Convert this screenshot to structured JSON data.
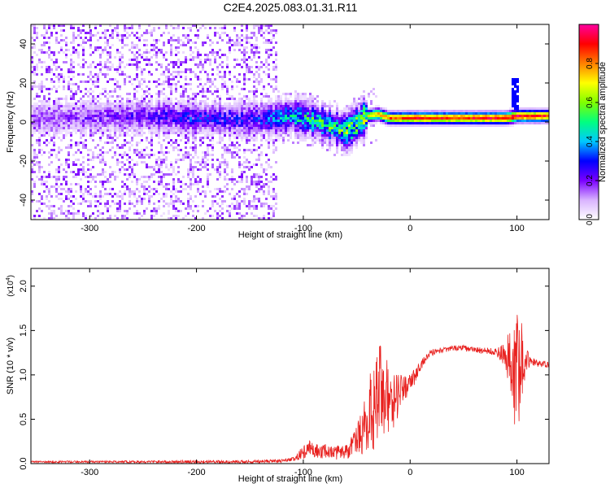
{
  "title": "C2E4.2025.083.01.31.R11",
  "chart_data": [
    {
      "type": "heatmap",
      "panel": "spectrogram",
      "xlabel": "Height of straight line (km)",
      "ylabel": "Frequency (Hz)",
      "xlim": [
        -355,
        130
      ],
      "ylim": [
        -50,
        50
      ],
      "xticks": [
        -300,
        -200,
        -100,
        0,
        100
      ],
      "yticks": [
        -40,
        -20,
        0,
        20,
        40
      ],
      "xtick_labels": [
        "-300",
        "-200",
        "-100",
        "0",
        "100"
      ],
      "ytick_labels": [
        "-40",
        "-20",
        "0",
        "20",
        "40"
      ],
      "colorbar": {
        "label": "Normalized spectral amplitude",
        "range": [
          0,
          1
        ],
        "ticks": [
          0.0,
          0.2,
          0.4,
          0.6,
          0.8
        ],
        "tick_labels": [
          "0.0",
          "0.2",
          "0.4",
          "0.6",
          "0.8"
        ],
        "colors": [
          "#ffffff",
          "#d9b3ff",
          "#7a00ff",
          "#0000ff",
          "#00c8ff",
          "#00ff80",
          "#80ff00",
          "#ffff00",
          "#ff8000",
          "#ff0000",
          "#ff00a0"
        ]
      },
      "features": {
        "noise_region_x": [
          -355,
          -125
        ],
        "noise_region_amplitude": 0.1,
        "band_center_freq": [
          [
            -355,
            2
          ],
          [
            -250,
            3
          ],
          [
            -150,
            1
          ],
          [
            -110,
            3
          ],
          [
            -90,
            1
          ],
          [
            -75,
            -2
          ],
          [
            -60,
            -5
          ],
          [
            -50,
            -1
          ],
          [
            -40,
            3
          ],
          [
            -30,
            4
          ],
          [
            -20,
            2
          ],
          [
            0,
            2
          ],
          [
            50,
            2
          ],
          [
            90,
            2
          ],
          [
            100,
            3
          ],
          [
            130,
            3
          ]
        ],
        "band_peak_amplitude": [
          [
            -355,
            0.15
          ],
          [
            -250,
            0.22
          ],
          [
            -200,
            0.3
          ],
          [
            -150,
            0.25
          ],
          [
            -120,
            0.4
          ],
          [
            -100,
            0.45
          ],
          [
            -80,
            0.5
          ],
          [
            -60,
            0.55
          ],
          [
            -40,
            0.7
          ],
          [
            -20,
            0.85
          ],
          [
            0,
            0.9
          ],
          [
            50,
            0.9
          ],
          [
            100,
            0.95
          ],
          [
            130,
            0.9
          ]
        ],
        "spike_x": 98
      }
    },
    {
      "type": "line",
      "panel": "snr",
      "xlabel": "Height of straight line (km)",
      "ylabel": "SNR (10 * v/v)",
      "y_multiplier_label": "(x10",
      "y_multiplier_exp": "4",
      "y_multiplier_close": ")",
      "xlim": [
        -355,
        130
      ],
      "ylim": [
        0,
        2.2
      ],
      "xticks": [
        -300,
        -200,
        -100,
        0,
        100
      ],
      "yticks": [
        0.0,
        0.5,
        1.0,
        1.5,
        2.0
      ],
      "xtick_labels": [
        "-300",
        "-200",
        "-100",
        "0",
        "100"
      ],
      "ytick_labels": [
        "0.0",
        "0.5",
        "1.0",
        "1.5",
        "2.0"
      ],
      "series": [
        {
          "color": "#e8201e",
          "envelope_x": [
            -355,
            -300,
            -200,
            -150,
            -120,
            -110,
            -100,
            -95,
            -90,
            -85,
            -80,
            -70,
            -60,
            -55,
            -50,
            -45,
            -40,
            -35,
            -30,
            -28,
            -25,
            -20,
            -15,
            -10,
            -5,
            0,
            5,
            10,
            15,
            20,
            25,
            30,
            35,
            40,
            50,
            60,
            70,
            80,
            85,
            90,
            95,
            98,
            100,
            102,
            104,
            106,
            110,
            120,
            130
          ],
          "envelope_y": [
            0.02,
            0.02,
            0.02,
            0.02,
            0.03,
            0.05,
            0.12,
            0.2,
            0.15,
            0.13,
            0.14,
            0.12,
            0.14,
            0.18,
            0.25,
            0.35,
            0.5,
            0.65,
            0.7,
            0.85,
            0.7,
            0.75,
            0.72,
            0.8,
            0.85,
            0.9,
            1.0,
            1.1,
            1.2,
            1.25,
            1.27,
            1.28,
            1.29,
            1.3,
            1.3,
            1.28,
            1.27,
            1.26,
            1.25,
            1.2,
            1.15,
            1.0,
            1.2,
            0.9,
            1.2,
            1.2,
            1.16,
            1.13,
            1.11
          ],
          "amplitude_x": [
            -355,
            -110,
            -100,
            -60,
            -45,
            -35,
            -28,
            -20,
            -5,
            10,
            30,
            80,
            88,
            94,
            98,
            102,
            106,
            112,
            130
          ],
          "amplitude_y": [
            0.01,
            0.02,
            0.08,
            0.08,
            0.25,
            0.5,
            0.6,
            0.4,
            0.15,
            0.05,
            0.03,
            0.04,
            0.15,
            0.35,
            0.6,
            0.8,
            0.3,
            0.05,
            0.03
          ]
        }
      ]
    }
  ]
}
